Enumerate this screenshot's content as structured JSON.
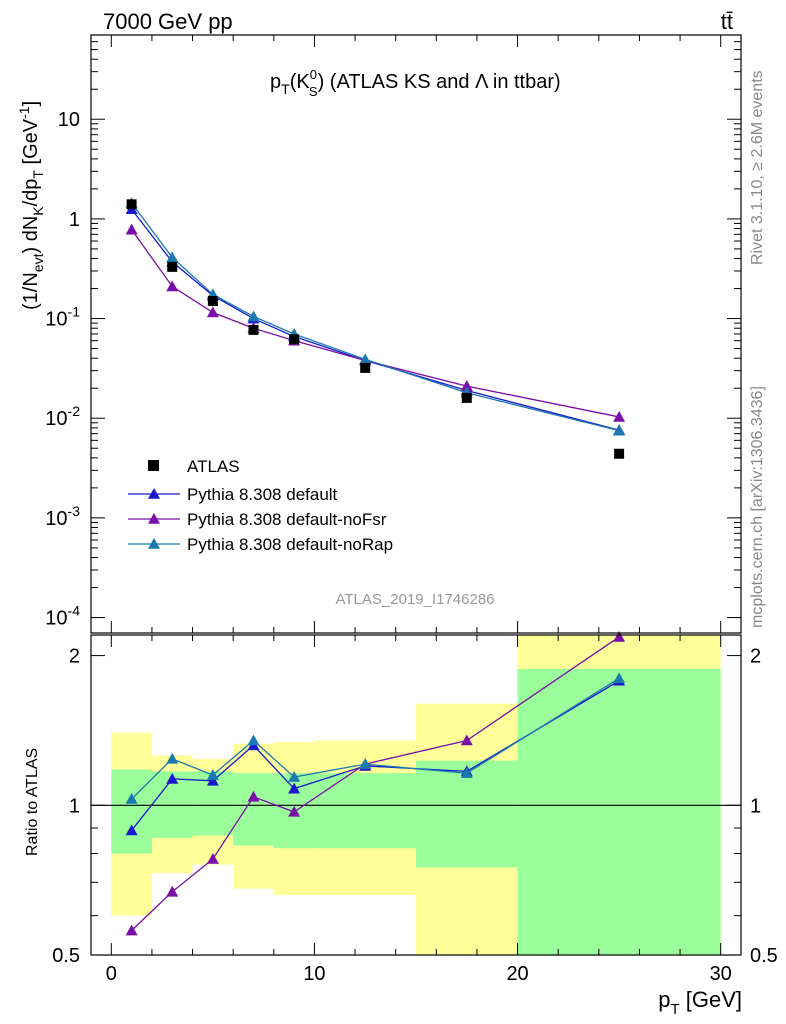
{
  "header": {
    "energy_label": "7000 GeV pp",
    "process_label": "tt̄"
  },
  "side_labels": {
    "rivet": "Rivet 3.1.10, ≥ 2.6M events",
    "mcplots": "mcplots.cern.ch [arXiv:1306.3436]"
  },
  "chart_data": {
    "type": "line",
    "title_main": "p",
    "title_sub": "T",
    "title_paren_open": "(K",
    "title_sup": "0",
    "title_sub2": "S",
    "title_rest": ") (ATLAS KS and Λ in ttbar)",
    "analysis_id": "ATLAS_2019_I1746286",
    "xlabel": "p",
    "xlabel_sub": "T",
    "xlabel_unit": " [GeV]",
    "ylabel": "(1/N_evt) dN_K/dp_T [GeV⁻¹]",
    "ratio_ylabel": "Ratio to ATLAS",
    "xlim": [
      -1,
      31
    ],
    "ylim_top": [
      7e-05,
      70
    ],
    "ylim_ratio": [
      0.5,
      2.2
    ],
    "yscale_top": "log",
    "yscale_ratio": "log",
    "x_ticks": [
      0,
      10,
      20,
      30
    ],
    "x_tick_labels": [
      "0",
      "10",
      "20",
      "30"
    ],
    "y_ticks_top": [
      0.0001,
      0.001,
      0.01,
      0.1,
      1,
      10
    ],
    "y_tick_labels_top": [
      "10⁻⁴",
      "10⁻³",
      "10⁻²",
      "10⁻¹",
      "1",
      "10"
    ],
    "y_ticks_ratio": [
      0.5,
      1,
      2
    ],
    "y_tick_labels_ratio": [
      "0.5",
      "1",
      "2"
    ],
    "legend_position": "lower-left",
    "bin_edges": [
      0,
      2,
      4,
      6,
      8,
      10,
      15,
      20,
      30
    ],
    "x": [
      1,
      3,
      5,
      7,
      9,
      12.5,
      17.5,
      25
    ],
    "data": {
      "name": "ATLAS",
      "color": "#000000",
      "values": [
        1.4,
        0.33,
        0.15,
        0.077,
        0.062,
        0.032,
        0.016,
        0.0044
      ]
    },
    "series": [
      {
        "name": "Pythia 8.308 default",
        "color": "#1a1acc",
        "values": [
          1.25,
          0.37,
          0.17,
          0.1,
          0.066,
          0.038,
          0.019,
          0.0076
        ],
        "ratio": [
          0.89,
          1.13,
          1.12,
          1.32,
          1.08,
          1.2,
          1.17,
          1.78
        ]
      },
      {
        "name": "Pythia 8.308 default-noFsr",
        "color": "#7a0fa8",
        "values": [
          0.78,
          0.21,
          0.115,
          0.08,
          0.06,
          0.038,
          0.021,
          0.0103
        ],
        "ratio": [
          0.56,
          0.67,
          0.78,
          1.04,
          0.97,
          1.21,
          1.35,
          2.18
        ]
      },
      {
        "name": "Pythia 8.308 default-noRap",
        "color": "#1a7ab0",
        "values": [
          1.44,
          0.41,
          0.175,
          0.105,
          0.07,
          0.039,
          0.018,
          0.0075
        ],
        "ratio": [
          1.03,
          1.24,
          1.15,
          1.35,
          1.14,
          1.21,
          1.16,
          1.8
        ]
      }
    ],
    "band_green": [
      [
        0.8,
        1.18
      ],
      [
        0.86,
        1.17
      ],
      [
        0.87,
        1.17
      ],
      [
        0.83,
        1.16
      ],
      [
        0.82,
        1.16
      ],
      [
        0.82,
        1.16
      ],
      [
        0.75,
        1.23
      ],
      [
        0.4,
        1.88
      ]
    ],
    "band_yellow": [
      [
        0.6,
        1.4
      ],
      [
        0.73,
        1.26
      ],
      [
        0.76,
        1.24
      ],
      [
        0.68,
        1.33
      ],
      [
        0.66,
        1.34
      ],
      [
        0.66,
        1.35
      ],
      [
        0.45,
        1.6
      ],
      [
        0.4,
        2.2
      ]
    ],
    "band_colors": {
      "green": "#9afe9a",
      "yellow": "#fffe99"
    }
  }
}
